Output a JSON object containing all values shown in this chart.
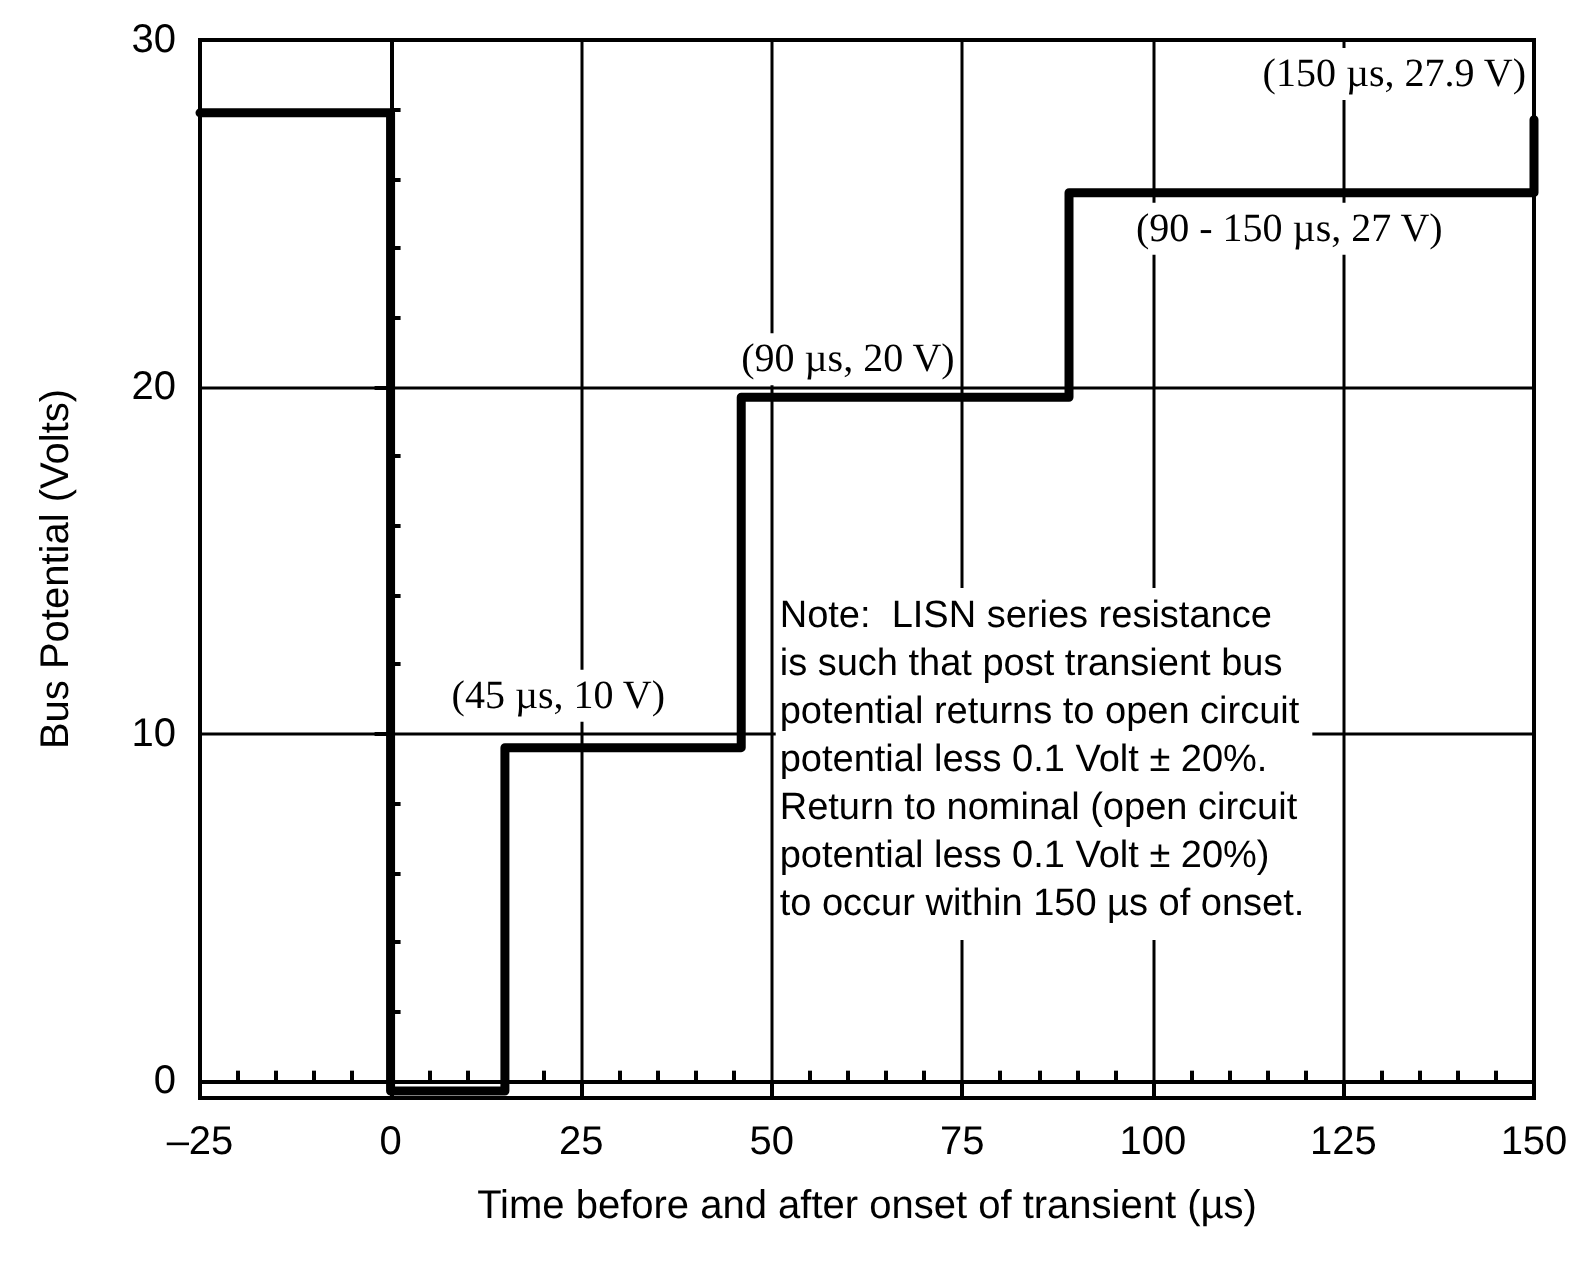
{
  "chart_data": {
    "type": "line",
    "xlabel": "Time before and after onset of transient (µs)",
    "ylabel": "Bus Potential (Volts)",
    "series": [
      {
        "color": "#000000",
        "x": [
          -25,
          0,
          0,
          15,
          15,
          46,
          46,
          89,
          89,
          150,
          150
        ],
        "values": [
          27.9,
          27.9,
          -0.3,
          -0.3,
          9.6,
          9.6,
          19.7,
          19.7,
          25.6,
          25.6,
          27.7
        ]
      }
    ],
    "xlim": [
      -25,
      150
    ],
    "xticks": [
      {
        "value": -25,
        "label": "–25"
      },
      {
        "value": -20,
        "label": null
      },
      {
        "value": -15,
        "label": null
      },
      {
        "value": -10,
        "label": null
      },
      {
        "value": -5,
        "label": null
      },
      0,
      {
        "value": 5,
        "label": null
      },
      {
        "value": 10,
        "label": null
      },
      {
        "value": 15,
        "label": null
      },
      {
        "value": 20,
        "label": null
      },
      25,
      {
        "value": 30,
        "label": null
      },
      {
        "value": 35,
        "label": null
      },
      {
        "value": 40,
        "label": null
      },
      {
        "value": 45,
        "label": null
      },
      50,
      {
        "value": 55,
        "label": null
      },
      {
        "value": 60,
        "label": null
      },
      {
        "value": 65,
        "label": null
      },
      {
        "value": 70,
        "label": null
      },
      75,
      {
        "value": 80,
        "label": null
      },
      {
        "value": 85,
        "label": null
      },
      {
        "value": 90,
        "label": null
      },
      {
        "value": 95,
        "label": null
      },
      100,
      {
        "value": 105,
        "label": null
      },
      {
        "value": 110,
        "label": null
      },
      {
        "value": 115,
        "label": null
      },
      {
        "value": 120,
        "label": null
      },
      125,
      {
        "value": 130,
        "label": null
      },
      {
        "value": 135,
        "label": null
      },
      {
        "value": 140,
        "label": null
      },
      {
        "value": 145,
        "label": null
      },
      150
    ],
    "ylim": [
      -0.5,
      30
    ],
    "yticks": [
      0,
      {
        "value": 2,
        "label": null
      },
      {
        "value": 4,
        "label": null
      },
      {
        "value": 6,
        "label": null
      },
      {
        "value": 8,
        "label": null
      },
      10,
      {
        "value": 12,
        "label": null
      },
      {
        "value": 14,
        "label": null
      },
      {
        "value": 16,
        "label": null
      },
      {
        "value": 18,
        "label": null
      },
      20,
      {
        "value": 22,
        "label": null
      },
      {
        "value": 24,
        "label": null
      },
      {
        "value": 26,
        "label": null
      },
      {
        "value": 28,
        "label": null
      },
      30
    ],
    "grid": true,
    "marker": "none",
    "line_style": "solid",
    "annotations": [
      "(150 µs, 27.9 V)",
      "(90 - 150 µs, 27 V)",
      "(90 µs, 20 V)",
      "(45 µs, 10 V)",
      "Note:  LISN series resistance\nis such that post transient bus\npotential returns to open circuit\npotential less 0.1 Volt ± 20%.\nReturn to nominal (open circuit\npotential less 0.1 Volt ± 20%)\nto occur within 150 µs of onset."
    ]
  }
}
